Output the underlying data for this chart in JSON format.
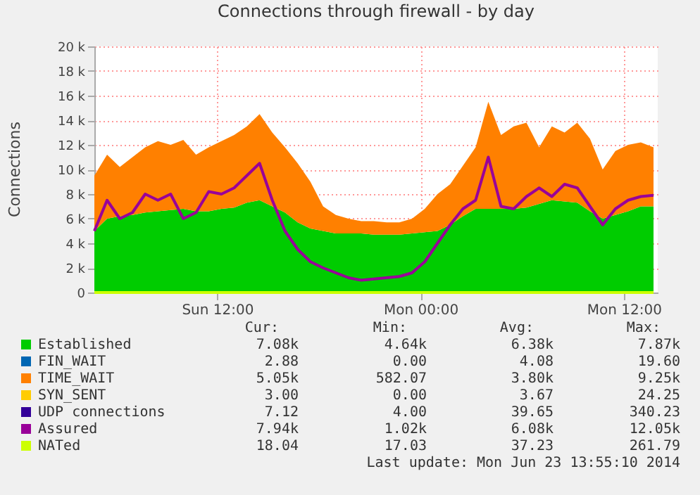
{
  "chart_data": {
    "type": "area",
    "title": "Connections through firewall - by day",
    "ylabel": "Connections",
    "stacked": true,
    "grid": true,
    "legend": "bottom",
    "x": [
      "2014-06-22T04:45",
      "2014-06-22T05:30",
      "2014-06-22T06:15",
      "2014-06-22T07:00",
      "2014-06-22T07:45",
      "2014-06-22T08:30",
      "2014-06-22T09:15",
      "2014-06-22T10:00",
      "2014-06-22T10:45",
      "2014-06-22T11:30",
      "2014-06-22T12:15",
      "2014-06-22T13:00",
      "2014-06-22T13:45",
      "2014-06-22T14:30",
      "2014-06-22T15:15",
      "2014-06-22T16:00",
      "2014-06-22T16:45",
      "2014-06-22T17:30",
      "2014-06-22T18:15",
      "2014-06-22T19:00",
      "2014-06-22T19:45",
      "2014-06-22T20:30",
      "2014-06-22T21:15",
      "2014-06-22T22:00",
      "2014-06-22T22:45",
      "2014-06-22T23:30",
      "2014-06-23T00:15",
      "2014-06-23T01:00",
      "2014-06-23T01:45",
      "2014-06-23T02:30",
      "2014-06-23T03:15",
      "2014-06-23T04:00",
      "2014-06-23T04:45",
      "2014-06-23T05:30",
      "2014-06-23T06:15",
      "2014-06-23T07:00",
      "2014-06-23T07:45",
      "2014-06-23T08:30",
      "2014-06-23T09:15",
      "2014-06-23T10:00",
      "2014-06-23T10:45",
      "2014-06-23T11:30",
      "2014-06-23T12:15",
      "2014-06-23T13:00",
      "2014-06-23T13:45"
    ],
    "xlim": [
      "2014-06-22T04:45",
      "2014-06-23T14:00"
    ],
    "xticks": [
      {
        "value": "2014-06-22T12:00",
        "label": "Sun 12:00"
      },
      {
        "value": "2014-06-23T00:00",
        "label": "Mon 00:00"
      },
      {
        "value": "2014-06-23T12:00",
        "label": "Mon 12:00"
      }
    ],
    "ylim": [
      0,
      20000
    ],
    "yticks": [
      0,
      {
        "value": 2000,
        "label": "2 k"
      },
      {
        "value": 4000,
        "label": "4 k"
      },
      {
        "value": 6000,
        "label": "6 k"
      },
      {
        "value": 8000,
        "label": "8 k"
      },
      {
        "value": 10000,
        "label": "10 k"
      },
      {
        "value": 12000,
        "label": "12 k"
      },
      {
        "value": 14000,
        "label": "14 k"
      },
      {
        "value": 16000,
        "label": "16 k"
      },
      {
        "value": 18000,
        "label": "18 k"
      },
      {
        "value": 20000,
        "label": "20 k"
      }
    ],
    "series": [
      {
        "name": "Established",
        "color": "#00cc00",
        "values": [
          5000,
          6000,
          6200,
          6300,
          6500,
          6600,
          6700,
          6800,
          6600,
          6600,
          6800,
          6900,
          7300,
          7500,
          7000,
          6500,
          5700,
          5200,
          5000,
          4800,
          4800,
          4800,
          4700,
          4700,
          4700,
          4800,
          4900,
          5000,
          5500,
          6200,
          6800,
          6800,
          6800,
          6800,
          6900,
          7200,
          7500,
          7400,
          7300,
          6600,
          6000,
          6300,
          6600,
          7000,
          7000
        ]
      },
      {
        "name": "FIN_WAIT",
        "color": "#0066b3",
        "values": [
          null,
          null,
          null,
          null,
          null,
          null,
          null,
          null,
          null,
          null,
          null,
          null,
          null,
          null,
          null,
          null,
          null,
          null,
          null,
          null,
          null,
          null,
          null,
          null,
          null,
          null,
          null,
          null,
          null,
          null,
          null,
          null,
          null,
          null,
          null,
          null,
          null,
          null,
          null,
          null,
          null,
          null,
          null,
          null,
          null
        ]
      },
      {
        "name": "TIME_WAIT",
        "color": "#ff8000",
        "values": [
          4500,
          5200,
          4000,
          4700,
          5300,
          5700,
          5300,
          5600,
          4600,
          5200,
          5500,
          5900,
          6200,
          7000,
          6000,
          5300,
          4800,
          3800,
          2000,
          1500,
          1200,
          1000,
          1100,
          1000,
          1000,
          1200,
          1900,
          3000,
          3300,
          4100,
          5000,
          8700,
          6000,
          6700,
          6900,
          4600,
          6000,
          5600,
          6500,
          5900,
          4000,
          5200,
          5400,
          5200,
          4800
        ]
      },
      {
        "name": "SYN_SENT",
        "color": "#ffcc00",
        "values": [
          null,
          null,
          null,
          null,
          null,
          null,
          null,
          null,
          null,
          null,
          null,
          null,
          null,
          null,
          null,
          null,
          null,
          null,
          null,
          null,
          null,
          null,
          null,
          null,
          null,
          null,
          null,
          null,
          null,
          null,
          null,
          null,
          null,
          null,
          null,
          null,
          null,
          null,
          null,
          null,
          null,
          null,
          null,
          null,
          null
        ]
      },
      {
        "name": "UDP connections",
        "color": "#330099",
        "values": [
          null,
          null,
          null,
          null,
          null,
          null,
          null,
          null,
          null,
          null,
          null,
          null,
          null,
          null,
          null,
          null,
          null,
          null,
          null,
          null,
          null,
          null,
          null,
          null,
          null,
          null,
          null,
          null,
          null,
          null,
          null,
          null,
          null,
          null,
          null,
          null,
          null,
          null,
          null,
          null,
          null,
          null,
          null,
          null,
          null
        ]
      },
      {
        "name": "Assured",
        "color": "#990099",
        "type": "line",
        "values": [
          5000,
          7500,
          6000,
          6500,
          8000,
          7500,
          8000,
          6000,
          6500,
          8200,
          8000,
          8500,
          9500,
          10500,
          7500,
          5000,
          3500,
          2500,
          2000,
          1600,
          1200,
          1000,
          1100,
          1200,
          1300,
          1600,
          2500,
          4000,
          5500,
          6800,
          7500,
          11000,
          7000,
          6800,
          7800,
          8500,
          7800,
          8800,
          8500,
          7000,
          5500,
          6800,
          7500,
          7800,
          7900
        ]
      },
      {
        "name": "NATed",
        "color": "#ccff00",
        "type": "line",
        "values": [
          0,
          0,
          0,
          0,
          0,
          0,
          0,
          0,
          0,
          0,
          0,
          0,
          0,
          0,
          0,
          0,
          0,
          0,
          0,
          0,
          0,
          0,
          0,
          0,
          0,
          0,
          0,
          0,
          0,
          0,
          0,
          0,
          0,
          0,
          0,
          0,
          0,
          0,
          0,
          0,
          0,
          0,
          0,
          0,
          0
        ]
      }
    ],
    "annotations": [
      "Cur:",
      "Min:",
      "Avg:",
      "Max:",
      "7.08k",
      "4.64k",
      "6.38k",
      "7.87k",
      "2.88",
      "0.00",
      "4.08",
      "19.60",
      "5.05k",
      "582.07",
      "3.80k",
      "9.25k",
      "3.00",
      "0.00",
      "3.67",
      "24.25",
      "7.12",
      "4.00",
      "39.65",
      "340.23",
      "7.94k",
      "1.02k",
      "6.08k",
      "12.05k",
      "18.04",
      "17.03",
      "37.23",
      "261.79",
      "Last update:  Mon Jun 23 13:55:10 2014"
    ]
  }
}
